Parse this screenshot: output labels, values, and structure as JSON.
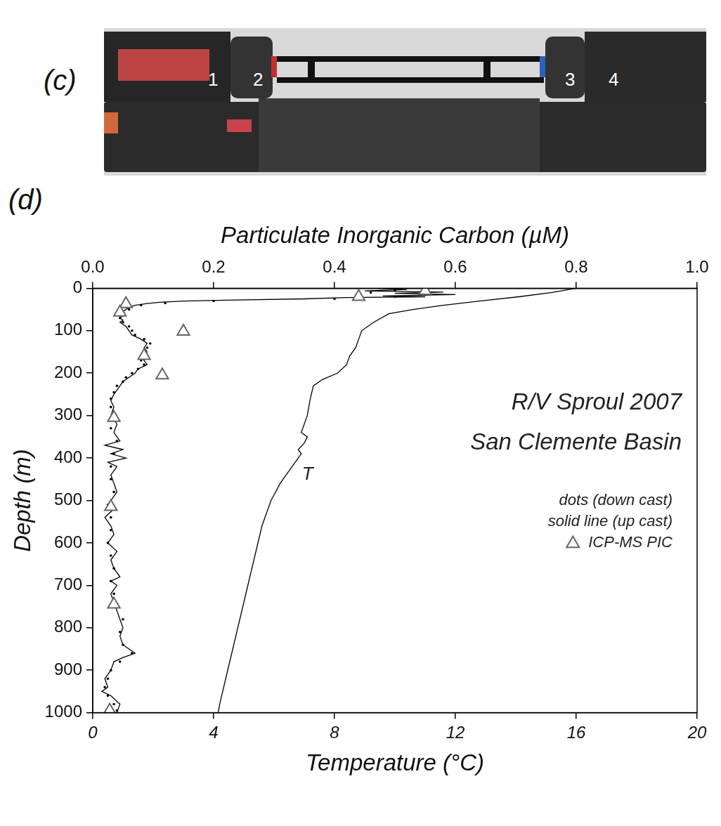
{
  "photo": {
    "label": "(c)",
    "parts": [
      "1",
      "2",
      "3",
      "4"
    ]
  },
  "chart_data": {
    "type": "line",
    "panel_label": "(d)",
    "annotations": [
      "R/V Sproul 2007",
      "San Clemente Basin"
    ],
    "xlabel": "Temperature (°C)",
    "x2label": "Particulate Inorganic Carbon (µM)",
    "ylabel": "Depth (m)",
    "xlim": [
      0,
      20
    ],
    "xticks": [
      0,
      4,
      8,
      12,
      16,
      20
    ],
    "x2lim": [
      0,
      1.0
    ],
    "x2ticks": [
      {
        "value": 0,
        "label": "0.0"
      },
      0.2,
      0.4,
      0.6,
      0.8,
      {
        "value": 1.0,
        "label": "1.0"
      }
    ],
    "ylim": [
      1000,
      0
    ],
    "yticks": [
      0,
      100,
      200,
      300,
      400,
      500,
      600,
      700,
      800,
      900,
      1000
    ],
    "grid": false,
    "legend": "right",
    "series": [
      {
        "name": "dots (down cast)",
        "color": "#000000",
        "marker": "circle",
        "line_style": "none",
        "axis": "x2",
        "x": [
          0.5,
          0.46,
          0.55,
          0.5,
          0.4,
          0.2,
          0.12,
          0.08,
          0.06,
          0.05,
          0.045,
          0.05,
          0.06,
          0.065,
          0.07,
          0.085,
          0.095,
          0.09,
          0.085,
          0.09,
          0.08,
          0.085,
          0.075,
          0.065,
          0.055,
          0.05,
          0.04,
          0.035,
          0.03,
          0.03,
          0.035,
          0.03,
          0.04,
          0.035,
          0.03,
          0.03,
          0.035,
          0.025,
          0.03,
          0.03,
          0.025,
          0.03,
          0.035,
          0.03,
          0.035,
          0.04,
          0.05,
          0.045,
          0.05,
          0.065,
          0.045,
          0.03,
          0.025,
          0.02,
          0.025,
          0.035,
          0.04
        ],
        "y": [
          5,
          10,
          15,
          20,
          25,
          30,
          35,
          40,
          50,
          60,
          70,
          80,
          90,
          100,
          110,
          120,
          130,
          140,
          150,
          160,
          170,
          180,
          190,
          200,
          210,
          220,
          230,
          245,
          260,
          280,
          300,
          330,
          360,
          390,
          420,
          450,
          480,
          510,
          540,
          570,
          600,
          630,
          660,
          690,
          720,
          750,
          780,
          810,
          840,
          860,
          880,
          900,
          920,
          940,
          960,
          980,
          995
        ]
      },
      {
        "name": "solid line (up cast)",
        "color": "#000000",
        "marker": "none",
        "line_style": "solid",
        "axis": "x2",
        "x": [
          0.47,
          0.52,
          0.45,
          0.58,
          0.5,
          0.6,
          0.48,
          0.55,
          0.42,
          0.35,
          0.22,
          0.15,
          0.11,
          0.09,
          0.07,
          0.06,
          0.055,
          0.05,
          0.045,
          0.05,
          0.045,
          0.05,
          0.045,
          0.055,
          0.06,
          0.065,
          0.08,
          0.09,
          0.085,
          0.09,
          0.08,
          0.085,
          0.09,
          0.075,
          0.07,
          0.06,
          0.05,
          0.045,
          0.04,
          0.035,
          0.03,
          0.035,
          0.03,
          0.04,
          0.035,
          0.045,
          0.02,
          0.05,
          0.03,
          0.055,
          0.025,
          0.04,
          0.03,
          0.035,
          0.04,
          0.03,
          0.035,
          0.02,
          0.03,
          0.035,
          0.025,
          0.04,
          0.03,
          0.035,
          0.045,
          0.03,
          0.04,
          0.03,
          0.035,
          0.04,
          0.045,
          0.05,
          0.045,
          0.05,
          0.06,
          0.07,
          0.05,
          0.035,
          0.03,
          0.02,
          0.025,
          0.015,
          0.03,
          0.045,
          0.04
        ],
        "y": [
          0,
          3,
          6,
          9,
          12,
          15,
          18,
          20,
          22,
          25,
          28,
          30,
          33,
          36,
          40,
          45,
          50,
          55,
          60,
          65,
          70,
          75,
          80,
          90,
          100,
          110,
          120,
          130,
          140,
          150,
          160,
          170,
          180,
          190,
          200,
          210,
          220,
          230,
          240,
          250,
          265,
          280,
          300,
          320,
          340,
          360,
          370,
          380,
          390,
          400,
          410,
          420,
          440,
          460,
          480,
          500,
          520,
          540,
          560,
          580,
          600,
          620,
          640,
          660,
          680,
          690,
          700,
          720,
          740,
          760,
          780,
          800,
          820,
          840,
          850,
          860,
          870,
          880,
          900,
          920,
          940,
          950,
          960,
          980,
          1000
        ]
      },
      {
        "name": "ICP-MS PIC",
        "color": "#666666",
        "marker": "triangle",
        "line_style": "none",
        "axis": "x2",
        "x": [
          0.55,
          0.44,
          0.055,
          0.045,
          0.15,
          0.085,
          0.115,
          0.035,
          0.03,
          0.035,
          0.028
        ],
        "y": [
          6,
          20,
          37,
          57,
          102,
          159,
          205,
          305,
          515,
          745,
          995
        ]
      },
      {
        "name": "T",
        "color": "#000000",
        "marker": "none",
        "line_style": "solid",
        "axis": "x",
        "x": [
          16.0,
          15.2,
          14.1,
          12.8,
          11.6,
          10.6,
          9.8,
          9.3,
          8.9,
          8.8,
          8.7,
          8.5,
          8.4,
          8.1,
          7.6,
          7.3,
          7.2,
          7.1,
          6.9,
          7.1,
          7.0,
          6.8,
          6.9,
          6.6,
          6.2,
          5.9,
          5.6,
          5.4,
          5.2,
          5.0,
          4.8,
          4.6,
          4.4,
          4.2,
          4.15
        ],
        "y": [
          0,
          10,
          20,
          30,
          40,
          50,
          60,
          80,
          100,
          120,
          140,
          160,
          180,
          200,
          215,
          230,
          260,
          300,
          340,
          350,
          365,
          380,
          390,
          420,
          460,
          500,
          560,
          620,
          680,
          740,
          800,
          860,
          920,
          980,
          1000
        ]
      }
    ]
  }
}
